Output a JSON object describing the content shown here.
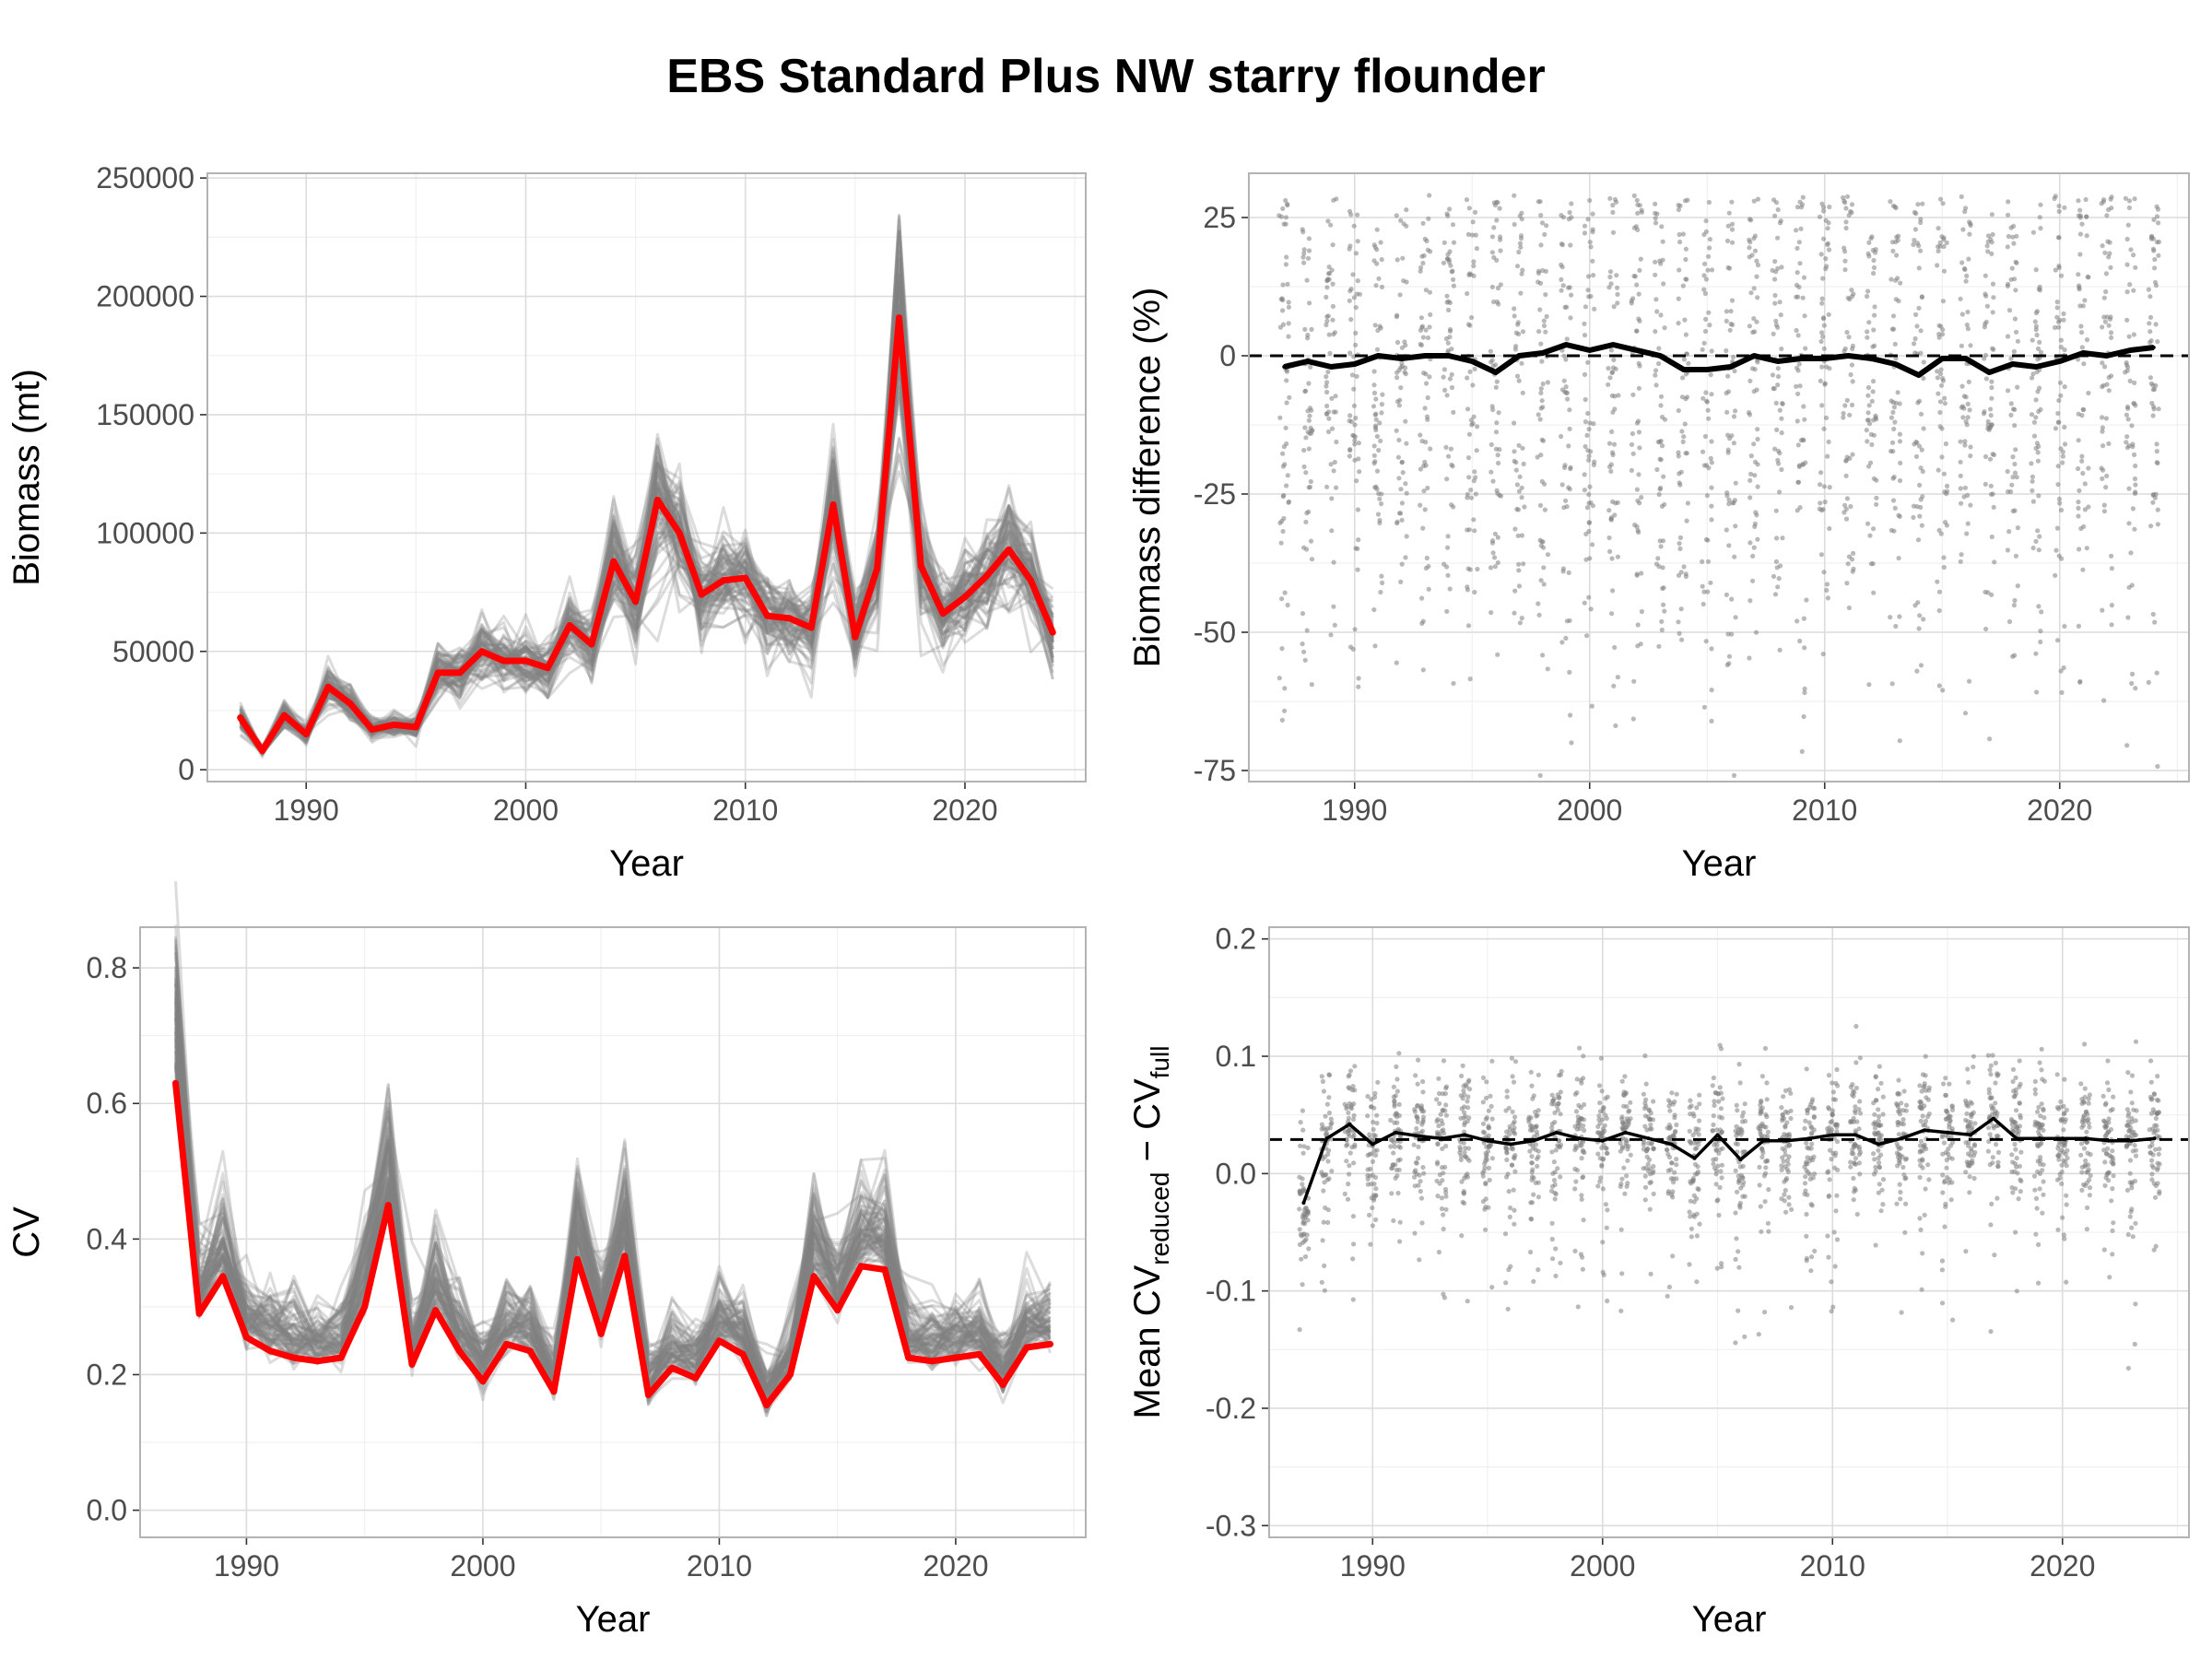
{
  "figure": {
    "title": "EBS Standard Plus NW starry flounder"
  },
  "chart_data": [
    {
      "id": "biomass",
      "type": "line",
      "xlabel": "Year",
      "ylabel": "Biomass (mt)",
      "xlim": [
        1985.5,
        2025.5
      ],
      "ylim": [
        -5000,
        252000
      ],
      "xticks": [
        1990,
        2000,
        2010,
        2020
      ],
      "yticks": [
        0,
        50000,
        100000,
        150000,
        200000,
        250000
      ],
      "grid": true,
      "colors": {
        "reference": "#ff0000",
        "replicates": "#808080"
      },
      "series": [
        {
          "x": [
            1987,
            1988,
            1989,
            1990,
            1991,
            1992,
            1993,
            1994,
            1995,
            1996,
            1997,
            1998,
            1999,
            2000,
            2001,
            2002,
            2003,
            2004,
            2005,
            2006,
            2007,
            2008,
            2009,
            2010,
            2011,
            2012,
            2013,
            2014,
            2015,
            2016,
            2017,
            2018,
            2019,
            2020,
            2021,
            2022,
            2023,
            2024
          ],
          "y": [
            22000,
            8000,
            23000,
            15000,
            35000,
            28000,
            17000,
            19000,
            18000,
            41000,
            41000,
            50000,
            46000,
            46000,
            43000,
            61000,
            53000,
            88000,
            71000,
            114000,
            100000,
            74000,
            80000,
            81000,
            65000,
            64000,
            60000,
            112000,
            56000,
            85000,
            191000,
            86000,
            66000,
            73000,
            82000,
            93000,
            80000,
            58000
          ]
        }
      ]
    },
    {
      "id": "biomass-diff",
      "type": "scatter",
      "xlabel": "Year",
      "ylabel": "Biomass difference (%)",
      "xlim": [
        1985.5,
        2025.5
      ],
      "ylim": [
        -77,
        33
      ],
      "xticks": [
        1990,
        2000,
        2010,
        2020
      ],
      "yticks": [
        -75,
        -50,
        -25,
        0,
        25
      ],
      "reference_line": 0,
      "grid": true,
      "colors": {
        "points": "#7f7f7f",
        "mean": "#000000"
      },
      "series": [
        {
          "x": [
            1987,
            1988,
            1989,
            1990,
            1991,
            1992,
            1993,
            1994,
            1995,
            1996,
            1997,
            1998,
            1999,
            2000,
            2001,
            2002,
            2003,
            2004,
            2005,
            2006,
            2007,
            2008,
            2009,
            2010,
            2011,
            2012,
            2013,
            2014,
            2015,
            2016,
            2017,
            2018,
            2019,
            2020,
            2021,
            2022,
            2023,
            2024
          ],
          "y": [
            -2,
            -1,
            -2,
            -1.5,
            0,
            -0.5,
            0,
            0,
            -1,
            -3,
            0,
            0.5,
            2,
            1,
            2,
            1,
            0,
            -2.5,
            -2.5,
            -2,
            0,
            -1,
            -0.5,
            -0.5,
            0,
            -0.5,
            -1.5,
            -3.5,
            -0.5,
            -0.5,
            -3,
            -1.5,
            -2,
            -1,
            0.5,
            0,
            1,
            1.5
          ]
        }
      ]
    },
    {
      "id": "cv",
      "type": "line",
      "xlabel": "Year",
      "ylabel": "CV",
      "xlim": [
        1985.5,
        2025.5
      ],
      "ylim": [
        -0.04,
        0.86
      ],
      "xticks": [
        1990,
        2000,
        2010,
        2020
      ],
      "yticks": [
        0.0,
        0.2,
        0.4,
        0.6,
        0.8
      ],
      "grid": true,
      "colors": {
        "reference": "#ff0000",
        "replicates": "#808080"
      },
      "series": [
        {
          "x": [
            1987,
            1988,
            1989,
            1990,
            1991,
            1992,
            1993,
            1994,
            1995,
            1996,
            1997,
            1998,
            1999,
            2000,
            2001,
            2002,
            2003,
            2004,
            2005,
            2006,
            2007,
            2008,
            2009,
            2010,
            2011,
            2012,
            2013,
            2014,
            2015,
            2016,
            2017,
            2018,
            2019,
            2020,
            2021,
            2022,
            2023,
            2024
          ],
          "y": [
            0.63,
            0.29,
            0.345,
            0.255,
            0.235,
            0.225,
            0.22,
            0.225,
            0.3,
            0.45,
            0.215,
            0.295,
            0.235,
            0.19,
            0.245,
            0.235,
            0.175,
            0.37,
            0.26,
            0.375,
            0.17,
            0.21,
            0.195,
            0.25,
            0.23,
            0.155,
            0.2,
            0.345,
            0.295,
            0.36,
            0.355,
            0.225,
            0.22,
            0.225,
            0.23,
            0.185,
            0.24,
            0.245
          ]
        }
      ]
    },
    {
      "id": "cv-diff",
      "type": "scatter",
      "xlabel": "Year",
      "ylabel": {
        "prefix": "Mean CV",
        "sub1": "reduced",
        "middle": " − CV",
        "sub2": "full"
      },
      "xlim": [
        1985.5,
        2025.5
      ],
      "ylim": [
        -0.31,
        0.21
      ],
      "xticks": [
        1990,
        2000,
        2010,
        2020
      ],
      "yticks": [
        -0.3,
        -0.2,
        -0.1,
        0.0,
        0.1,
        0.2
      ],
      "reference_line": 0.029,
      "grid": true,
      "colors": {
        "points": "#7f7f7f",
        "mean": "#000000"
      },
      "series": [
        {
          "x": [
            1987,
            1988,
            1989,
            1990,
            1991,
            1992,
            1993,
            1994,
            1995,
            1996,
            1997,
            1998,
            1999,
            2000,
            2001,
            2002,
            2003,
            2004,
            2005,
            2006,
            2007,
            2008,
            2009,
            2010,
            2011,
            2012,
            2013,
            2014,
            2015,
            2016,
            2017,
            2018,
            2019,
            2020,
            2021,
            2022,
            2023,
            2024
          ],
          "y": [
            -0.025,
            0.03,
            0.042,
            0.025,
            0.035,
            0.032,
            0.03,
            0.033,
            0.028,
            0.025,
            0.028,
            0.035,
            0.03,
            0.028,
            0.035,
            0.03,
            0.025,
            0.013,
            0.033,
            0.012,
            0.028,
            0.028,
            0.03,
            0.033,
            0.033,
            0.025,
            0.03,
            0.037,
            0.035,
            0.033,
            0.047,
            0.03,
            0.03,
            0.03,
            0.03,
            0.028,
            0.028,
            0.03
          ]
        }
      ]
    }
  ]
}
